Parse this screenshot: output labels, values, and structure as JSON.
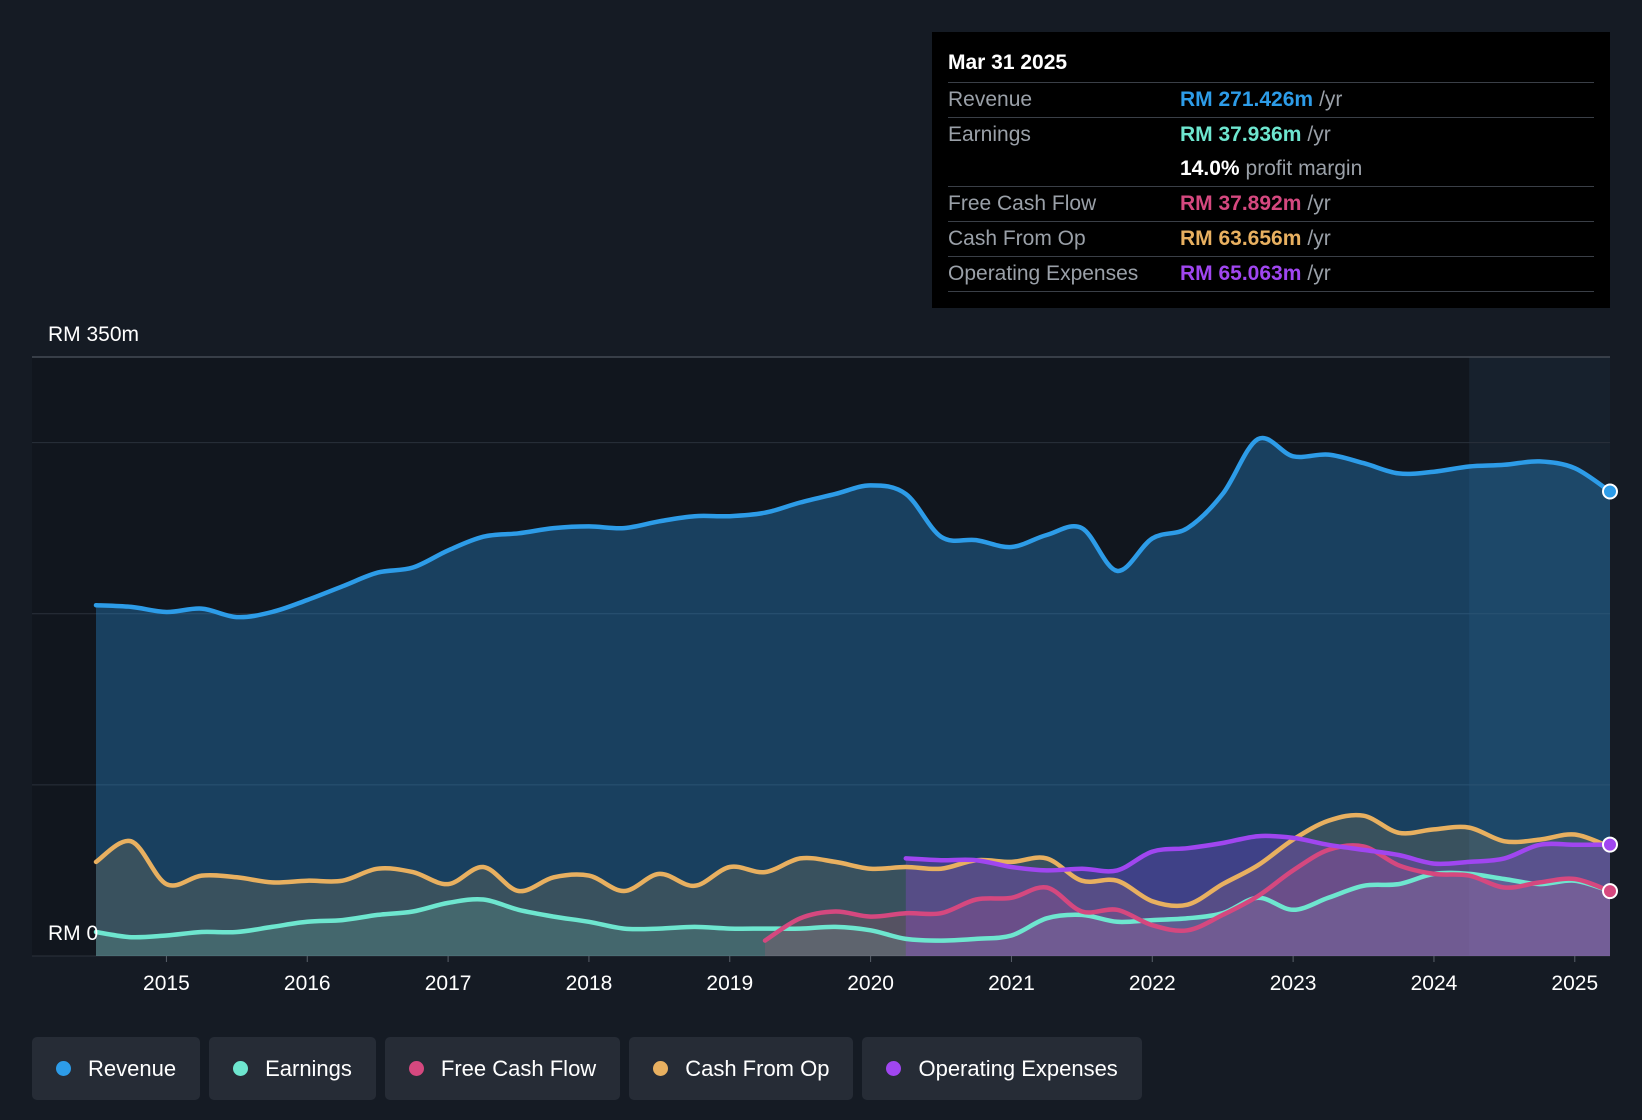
{
  "tooltip": {
    "date": "Mar 31 2025",
    "rows": [
      {
        "label": "Revenue",
        "value": "RM 271.426m",
        "unit": "/yr",
        "color": "#2d9ce8"
      },
      {
        "label": "Earnings",
        "value": "RM 37.936m",
        "unit": "/yr",
        "color": "#6ee6cf"
      },
      {
        "label": "Free Cash Flow",
        "value": "RM 37.892m",
        "unit": "/yr",
        "color": "#d5487f"
      },
      {
        "label": "Cash From Op",
        "value": "RM 63.656m",
        "unit": "/yr",
        "color": "#e8b060"
      },
      {
        "label": "Operating Expenses",
        "value": "RM 65.063m",
        "unit": "/yr",
        "color": "#a046f0"
      }
    ],
    "margin": {
      "value": "14.0%",
      "label": "profit margin"
    }
  },
  "legend": [
    {
      "label": "Revenue",
      "color": "#2d9ce8"
    },
    {
      "label": "Earnings",
      "color": "#6ee6cf"
    },
    {
      "label": "Free Cash Flow",
      "color": "#d5487f"
    },
    {
      "label": "Cash From Op",
      "color": "#e8b060"
    },
    {
      "label": "Operating Expenses",
      "color": "#a046f0"
    }
  ],
  "chart_data": {
    "type": "line",
    "ylim": [
      0,
      350
    ],
    "ylabel_top": "RM 350m",
    "ylabel_bottom": "RM 0",
    "xlim": [
      2014.5,
      2025.25
    ],
    "forecast_start": 2024.25,
    "x_ticks": [
      "2015",
      "2016",
      "2017",
      "2018",
      "2019",
      "2020",
      "2021",
      "2022",
      "2023",
      "2024",
      "2025"
    ],
    "series": [
      {
        "name": "Revenue",
        "color": "#2d9ce8",
        "points": [
          [
            2014.5,
            205
          ],
          [
            2014.75,
            204
          ],
          [
            2015.0,
            201
          ],
          [
            2015.25,
            203
          ],
          [
            2015.5,
            198
          ],
          [
            2015.75,
            201
          ],
          [
            2016.0,
            208
          ],
          [
            2016.25,
            216
          ],
          [
            2016.5,
            224
          ],
          [
            2016.75,
            227
          ],
          [
            2017.0,
            237
          ],
          [
            2017.25,
            245
          ],
          [
            2017.5,
            247
          ],
          [
            2017.75,
            250
          ],
          [
            2018.0,
            251
          ],
          [
            2018.25,
            250
          ],
          [
            2018.5,
            254
          ],
          [
            2018.75,
            257
          ],
          [
            2019.0,
            257
          ],
          [
            2019.25,
            259
          ],
          [
            2019.5,
            265
          ],
          [
            2019.75,
            270
          ],
          [
            2020.0,
            275
          ],
          [
            2020.25,
            270
          ],
          [
            2020.5,
            245
          ],
          [
            2020.75,
            243
          ],
          [
            2021.0,
            239
          ],
          [
            2021.25,
            246
          ],
          [
            2021.5,
            250
          ],
          [
            2021.75,
            225
          ],
          [
            2022.0,
            244
          ],
          [
            2022.25,
            250
          ],
          [
            2022.5,
            270
          ],
          [
            2022.75,
            302
          ],
          [
            2023.0,
            292
          ],
          [
            2023.25,
            293
          ],
          [
            2023.5,
            288
          ],
          [
            2023.75,
            282
          ],
          [
            2024.0,
            283
          ],
          [
            2024.25,
            286
          ],
          [
            2024.5,
            287
          ],
          [
            2024.75,
            289
          ],
          [
            2025.0,
            285
          ],
          [
            2025.25,
            271.4
          ]
        ]
      },
      {
        "name": "Earnings",
        "color": "#6ee6cf",
        "points": [
          [
            2014.5,
            14
          ],
          [
            2014.75,
            11
          ],
          [
            2015.0,
            12
          ],
          [
            2015.25,
            14
          ],
          [
            2015.5,
            14
          ],
          [
            2015.75,
            17
          ],
          [
            2016.0,
            20
          ],
          [
            2016.25,
            21
          ],
          [
            2016.5,
            24
          ],
          [
            2016.75,
            26
          ],
          [
            2017.0,
            31
          ],
          [
            2017.25,
            33
          ],
          [
            2017.5,
            27
          ],
          [
            2017.75,
            23
          ],
          [
            2018.0,
            20
          ],
          [
            2018.25,
            16
          ],
          [
            2018.5,
            16
          ],
          [
            2018.75,
            17
          ],
          [
            2019.0,
            16
          ],
          [
            2019.25,
            16
          ],
          [
            2019.5,
            16
          ],
          [
            2019.75,
            17
          ],
          [
            2020.0,
            15
          ],
          [
            2020.25,
            10
          ],
          [
            2020.5,
            9
          ],
          [
            2020.75,
            10
          ],
          [
            2021.0,
            12
          ],
          [
            2021.25,
            22
          ],
          [
            2021.5,
            24
          ],
          [
            2021.75,
            20
          ],
          [
            2022.0,
            21
          ],
          [
            2022.25,
            22
          ],
          [
            2022.5,
            25
          ],
          [
            2022.75,
            34
          ],
          [
            2023.0,
            27
          ],
          [
            2023.25,
            34
          ],
          [
            2023.5,
            41
          ],
          [
            2023.75,
            42
          ],
          [
            2024.0,
            48
          ],
          [
            2024.25,
            48
          ],
          [
            2024.5,
            45
          ],
          [
            2024.75,
            42
          ],
          [
            2025.0,
            44
          ],
          [
            2025.25,
            37.9
          ]
        ]
      },
      {
        "name": "Free Cash Flow",
        "color": "#d5487f",
        "points": [
          [
            2019.25,
            9
          ],
          [
            2019.5,
            22
          ],
          [
            2019.75,
            26
          ],
          [
            2020.0,
            23
          ],
          [
            2020.25,
            25
          ],
          [
            2020.5,
            25
          ],
          [
            2020.75,
            33
          ],
          [
            2021.0,
            34
          ],
          [
            2021.25,
            40
          ],
          [
            2021.5,
            26
          ],
          [
            2021.75,
            27
          ],
          [
            2022.0,
            18
          ],
          [
            2022.25,
            15
          ],
          [
            2022.5,
            24
          ],
          [
            2022.75,
            35
          ],
          [
            2023.0,
            50
          ],
          [
            2023.25,
            62
          ],
          [
            2023.5,
            64
          ],
          [
            2023.75,
            53
          ],
          [
            2024.0,
            48
          ],
          [
            2024.25,
            47
          ],
          [
            2024.5,
            40
          ],
          [
            2024.75,
            43
          ],
          [
            2025.0,
            45
          ],
          [
            2025.25,
            37.9
          ]
        ]
      },
      {
        "name": "Cash From Op",
        "color": "#e8b060",
        "points": [
          [
            2014.5,
            55
          ],
          [
            2014.75,
            67
          ],
          [
            2015.0,
            42
          ],
          [
            2015.25,
            47
          ],
          [
            2015.5,
            46
          ],
          [
            2015.75,
            43
          ],
          [
            2016.0,
            44
          ],
          [
            2016.25,
            44
          ],
          [
            2016.5,
            51
          ],
          [
            2016.75,
            49
          ],
          [
            2017.0,
            42
          ],
          [
            2017.25,
            52
          ],
          [
            2017.5,
            38
          ],
          [
            2017.75,
            46
          ],
          [
            2018.0,
            47
          ],
          [
            2018.25,
            38
          ],
          [
            2018.5,
            48
          ],
          [
            2018.75,
            41
          ],
          [
            2019.0,
            52
          ],
          [
            2019.25,
            49
          ],
          [
            2019.5,
            57
          ],
          [
            2019.75,
            55
          ],
          [
            2020.0,
            51
          ],
          [
            2020.25,
            52
          ],
          [
            2020.5,
            51
          ],
          [
            2020.75,
            56
          ],
          [
            2021.0,
            55
          ],
          [
            2021.25,
            57
          ],
          [
            2021.5,
            44
          ],
          [
            2021.75,
            44
          ],
          [
            2022.0,
            32
          ],
          [
            2022.25,
            30
          ],
          [
            2022.5,
            42
          ],
          [
            2022.75,
            53
          ],
          [
            2023.0,
            68
          ],
          [
            2023.25,
            79
          ],
          [
            2023.5,
            82
          ],
          [
            2023.75,
            72
          ],
          [
            2024.0,
            74
          ],
          [
            2024.25,
            75
          ],
          [
            2024.5,
            67
          ],
          [
            2024.75,
            68
          ],
          [
            2025.0,
            71
          ],
          [
            2025.25,
            63.7
          ]
        ]
      },
      {
        "name": "Operating Expenses",
        "color": "#a046f0",
        "points": [
          [
            2020.25,
            57
          ],
          [
            2020.5,
            56
          ],
          [
            2020.75,
            56
          ],
          [
            2021.0,
            52
          ],
          [
            2021.25,
            50
          ],
          [
            2021.5,
            51
          ],
          [
            2021.75,
            50
          ],
          [
            2022.0,
            61
          ],
          [
            2022.25,
            63
          ],
          [
            2022.5,
            66
          ],
          [
            2022.75,
            70
          ],
          [
            2023.0,
            69
          ],
          [
            2023.25,
            65
          ],
          [
            2023.5,
            62
          ],
          [
            2023.75,
            59
          ],
          [
            2024.0,
            54
          ],
          [
            2024.25,
            55
          ],
          [
            2024.5,
            57
          ],
          [
            2024.75,
            65
          ],
          [
            2025.0,
            65
          ],
          [
            2025.25,
            65.1
          ]
        ]
      }
    ]
  }
}
